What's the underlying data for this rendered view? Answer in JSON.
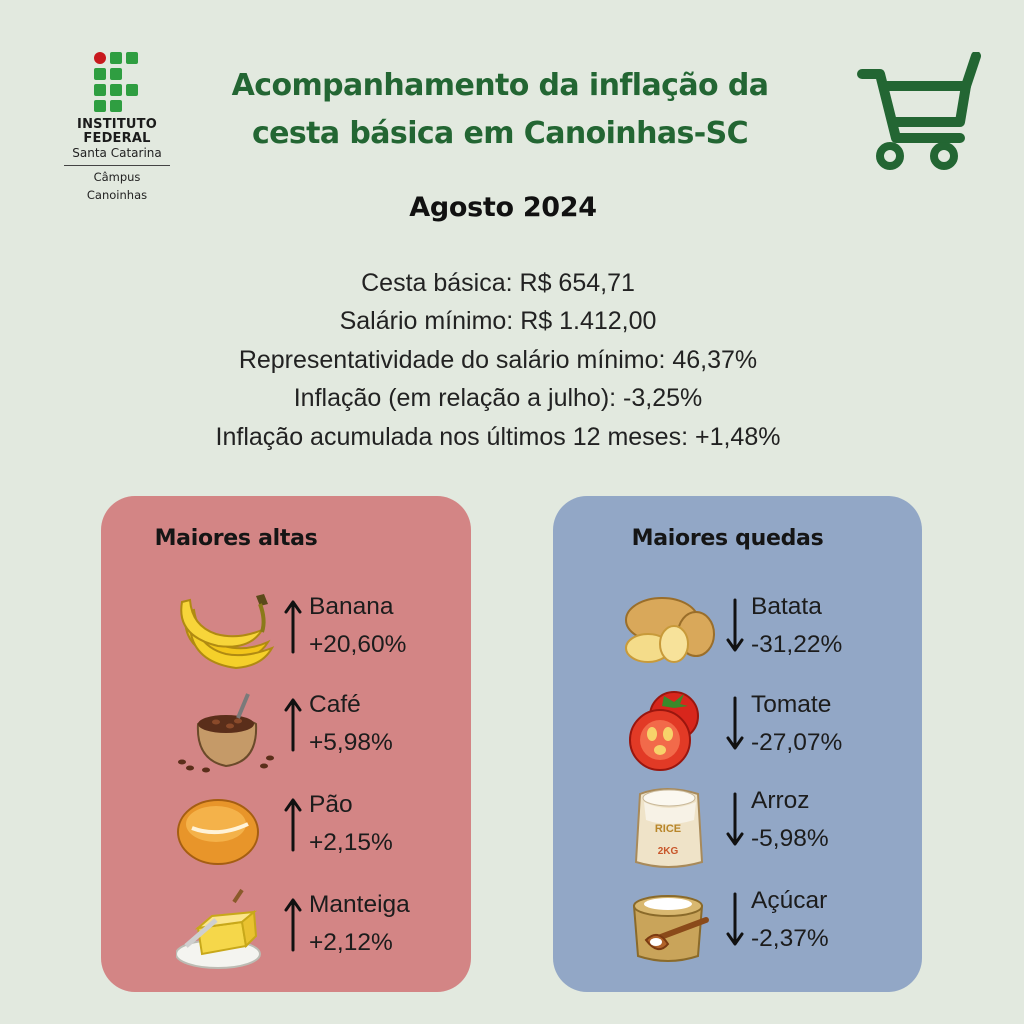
{
  "logo": {
    "line1": "INSTITUTO",
    "line2": "FEDERAL",
    "line3": "Santa Catarina",
    "line4": "Câmpus",
    "line5": "Canoinhas"
  },
  "header": {
    "title_line1": "Acompanhamento da inflação da",
    "title_line2": "cesta básica em Canoinhas-SC",
    "title_color": "#236633"
  },
  "month": "Agosto 2024",
  "stats": {
    "cesta": "Cesta básica: R$ 654,71",
    "salario": "Salário mínimo: R$ 1.412,00",
    "representatividade": "Representatividade do salário mínimo: 46,37%",
    "inflacao_mes": "Inflação (em relação a julho): -3,25%",
    "inflacao_12m": "Inflação acumulada nos últimos 12 meses: +1,48%"
  },
  "altas": {
    "title": "Maiores altas",
    "color": "#d38585",
    "items": [
      {
        "name": "Banana",
        "change": "+20,60%",
        "icon": "banana-icon"
      },
      {
        "name": "Café",
        "change": "+5,98%",
        "icon": "coffee-beans-icon"
      },
      {
        "name": "Pão",
        "change": "+2,15%",
        "icon": "bread-icon"
      },
      {
        "name": "Manteiga",
        "change": "+2,12%",
        "icon": "butter-icon"
      }
    ]
  },
  "quedas": {
    "title": "Maiores quedas",
    "color": "#92a7c6",
    "items": [
      {
        "name": "Batata",
        "change": "-31,22%",
        "icon": "potato-icon"
      },
      {
        "name": "Tomate",
        "change": "-27,07%",
        "icon": "tomato-icon"
      },
      {
        "name": "Arroz",
        "change": "-5,98%",
        "icon": "rice-bag-icon",
        "bag_label": "RICE",
        "bag_weight": "2KG"
      },
      {
        "name": "Açúcar",
        "change": "-2,37%",
        "icon": "sugar-sack-icon"
      }
    ]
  }
}
